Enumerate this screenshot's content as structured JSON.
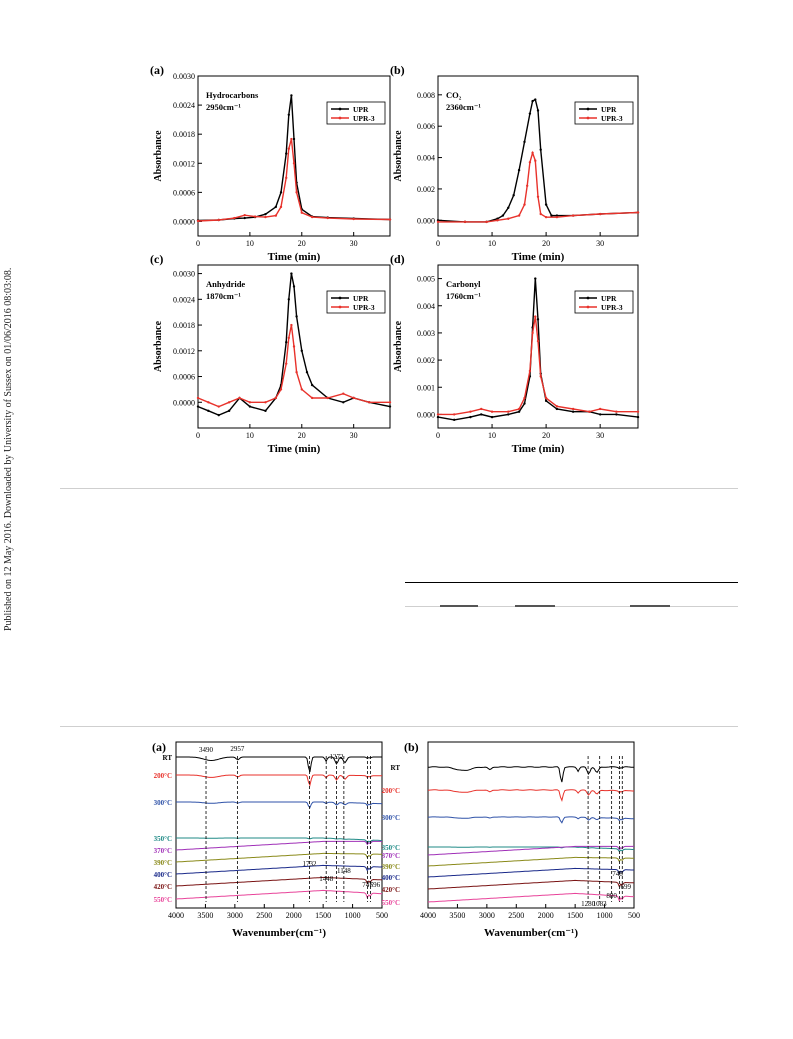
{
  "side_note": "Published on 12 May 2016. Downloaded by University of Sussex on 01/06/2016 08:03:08.",
  "gas_figure": {
    "xlabel": "Time (min)",
    "ylabel": "Absorbance",
    "legend": [
      "UPR",
      "UPR-3"
    ],
    "colors": {
      "UPR": "#000000",
      "UPR-3": "#e8322b"
    }
  },
  "ftir_figure": {
    "xlabel": "Wavenumber(cm⁻¹)"
  },
  "chart_data": [
    {
      "type": "line",
      "panel": "(a)",
      "annotation": [
        "Hydrocarbons",
        "2950cm⁻¹"
      ],
      "xlabel": "Time (min)",
      "ylabel": "Absorbance",
      "xlim": [
        0,
        37
      ],
      "ylim": [
        -0.0003,
        0.003
      ],
      "xticks": [
        "0",
        "10",
        "20",
        "30"
      ],
      "yticks": [
        "0.0000",
        "0.0006",
        "0.0012",
        "0.0018",
        "0.0024",
        "0.0030"
      ],
      "series": [
        {
          "name": "UPR",
          "x": [
            0,
            4,
            7,
            9,
            11,
            13,
            15,
            16,
            17,
            17.5,
            18,
            18.5,
            19,
            20,
            22,
            25,
            30,
            37
          ],
          "y": [
            2e-05,
            3e-05,
            6e-05,
            7e-05,
            9e-05,
            0.00015,
            0.0003,
            0.0006,
            0.0014,
            0.0022,
            0.0026,
            0.0017,
            0.0008,
            0.00025,
            0.0001,
            8e-05,
            6e-05,
            4e-05
          ]
        },
        {
          "name": "UPR-3",
          "x": [
            0,
            4,
            7,
            9,
            11,
            13,
            15,
            16,
            17,
            17.5,
            18,
            18.5,
            19,
            20,
            22,
            25,
            30,
            37
          ],
          "y": [
            1e-05,
            3e-05,
            7e-05,
            0.00013,
            0.0001,
            9e-05,
            0.00012,
            0.0003,
            0.0009,
            0.0015,
            0.0017,
            0.0012,
            0.0006,
            0.00018,
            9e-05,
            7e-05,
            5e-05,
            4e-05
          ]
        }
      ]
    },
    {
      "type": "line",
      "panel": "(b)",
      "annotation": [
        "CO₂",
        "2360cm⁻¹"
      ],
      "xlabel": "Time (min)",
      "ylabel": "Absorbance",
      "xlim": [
        0,
        37
      ],
      "ylim": [
        -0.001,
        0.0092
      ],
      "xticks": [
        "0",
        "10",
        "20",
        "30"
      ],
      "yticks": [
        "0.000",
        "0.002",
        "0.004",
        "0.006",
        "0.008"
      ],
      "series": [
        {
          "name": "UPR",
          "x": [
            0,
            5,
            9,
            11,
            12,
            13,
            14,
            15,
            16,
            17,
            17.5,
            18,
            18.5,
            19,
            20,
            21,
            22,
            25,
            30,
            37
          ],
          "y": [
            0.0,
            -0.0001,
            -0.0001,
            0.0001,
            0.0003,
            0.0008,
            0.0016,
            0.0032,
            0.005,
            0.0068,
            0.0076,
            0.0077,
            0.007,
            0.0045,
            0.001,
            0.0003,
            0.0003,
            0.0003,
            0.0004,
            0.0005
          ]
        },
        {
          "name": "UPR-3",
          "x": [
            0,
            5,
            9,
            11,
            13,
            15,
            16,
            16.5,
            17,
            17.5,
            18,
            18.5,
            19,
            20,
            22,
            25,
            30,
            37
          ],
          "y": [
            -0.0001,
            -0.0001,
            -0.0001,
            0.0,
            0.0001,
            0.0003,
            0.001,
            0.0022,
            0.0037,
            0.0043,
            0.0038,
            0.0015,
            0.0004,
            0.0002,
            0.0002,
            0.0003,
            0.0004,
            0.0005
          ]
        }
      ]
    },
    {
      "type": "line",
      "panel": "(c)",
      "annotation": [
        "Anhydride",
        "1870cm⁻¹"
      ],
      "xlabel": "Time (min)",
      "ylabel": "Absorbance",
      "xlim": [
        0,
        37
      ],
      "ylim": [
        -0.0006,
        0.0032
      ],
      "xticks": [
        "0",
        "10",
        "20",
        "30"
      ],
      "yticks": [
        "0.0000",
        "0.0006",
        "0.0012",
        "0.0018",
        "0.0024",
        "0.0030"
      ],
      "series": [
        {
          "name": "UPR",
          "x": [
            0,
            2,
            4,
            6,
            8,
            10,
            13,
            15,
            16,
            17,
            17.5,
            18,
            18.5,
            19,
            20,
            21,
            22,
            25,
            28,
            30,
            33,
            37
          ],
          "y": [
            -0.0001,
            -0.0002,
            -0.0003,
            -0.0002,
            0.0001,
            -0.0001,
            -0.0002,
            0.0001,
            0.0004,
            0.0014,
            0.0024,
            0.003,
            0.0027,
            0.002,
            0.0012,
            0.0007,
            0.0004,
            0.0001,
            0.0,
            0.0001,
            0.0,
            -0.0001
          ]
        },
        {
          "name": "UPR-3",
          "x": [
            0,
            2,
            4,
            6,
            8,
            10,
            13,
            15,
            16,
            17,
            17.5,
            18,
            18.5,
            19,
            20,
            22,
            25,
            28,
            30,
            33,
            37
          ],
          "y": [
            0.0001,
            0.0,
            -0.0001,
            0.0,
            0.0001,
            0.0,
            0.0,
            0.0001,
            0.0003,
            0.0009,
            0.0015,
            0.0018,
            0.0013,
            0.0007,
            0.0003,
            0.0001,
            0.0001,
            0.0002,
            0.0001,
            0.0,
            0.0
          ]
        }
      ]
    },
    {
      "type": "line",
      "panel": "(d)",
      "annotation": [
        "Carbonyl",
        "1760cm⁻¹"
      ],
      "xlabel": "Time (min)",
      "ylabel": "Absorbance",
      "xlim": [
        0,
        37
      ],
      "ylim": [
        -0.0005,
        0.0055
      ],
      "xticks": [
        "0",
        "10",
        "20",
        "30"
      ],
      "yticks": [
        "0.000",
        "0.001",
        "0.002",
        "0.003",
        "0.004",
        "0.005"
      ],
      "series": [
        {
          "name": "UPR",
          "x": [
            0,
            3,
            6,
            8,
            10,
            13,
            15,
            16,
            17,
            17.5,
            18,
            18.5,
            19,
            20,
            22,
            25,
            28,
            30,
            33,
            37
          ],
          "y": [
            -0.0001,
            -0.0002,
            -0.0001,
            0.0,
            -0.0001,
            0.0,
            0.0001,
            0.0004,
            0.0014,
            0.0032,
            0.005,
            0.0035,
            0.0015,
            0.0005,
            0.0002,
            0.0001,
            0.0001,
            0.0,
            0.0,
            -0.0001
          ]
        },
        {
          "name": "UPR-3",
          "x": [
            0,
            3,
            6,
            8,
            10,
            13,
            15,
            16,
            17,
            17.5,
            18,
            18.5,
            19,
            20,
            22,
            25,
            28,
            30,
            33,
            37
          ],
          "y": [
            0.0,
            0.0,
            0.0001,
            0.0002,
            0.0001,
            0.0001,
            0.0002,
            0.0006,
            0.0016,
            0.003,
            0.0036,
            0.0027,
            0.0014,
            0.0006,
            0.0003,
            0.0002,
            0.0001,
            0.0002,
            0.0001,
            0.0001
          ]
        }
      ]
    },
    {
      "type": "line",
      "panel": "(a)",
      "xlabel": "Wavenumber(cm⁻¹)",
      "xlim": [
        4000,
        500
      ],
      "xticks": [
        "4000",
        "3500",
        "3000",
        "2500",
        "2000",
        "1500",
        "1000",
        "500"
      ],
      "series": [
        {
          "name": "RT",
          "color": "#000000"
        },
        {
          "name": "200°C",
          "color": "#e8322b"
        },
        {
          "name": "300°C",
          "color": "#2f52a8"
        },
        {
          "name": "350°C",
          "color": "#1f8a86"
        },
        {
          "name": "370°C",
          "color": "#a030b8"
        },
        {
          "name": "390°C",
          "color": "#8a8a1a"
        },
        {
          "name": "400°C",
          "color": "#1a2a8a"
        },
        {
          "name": "420°C",
          "color": "#7a1414"
        },
        {
          "name": "550°C",
          "color": "#e8449a"
        }
      ],
      "peak_labels": [
        "3490",
        "2957",
        "1272",
        "1732",
        "1448",
        "1148",
        "747",
        "696"
      ]
    },
    {
      "type": "line",
      "panel": "(b)",
      "xlabel": "Wavenumber(cm⁻¹)",
      "xlim": [
        4000,
        500
      ],
      "xticks": [
        "4000",
        "3500",
        "3000",
        "2500",
        "2000",
        "1500",
        "1000",
        "500"
      ],
      "series": [
        {
          "name": "RT",
          "color": "#000000"
        },
        {
          "name": "200°C",
          "color": "#e8322b"
        },
        {
          "name": "300°C",
          "color": "#2f52a8"
        },
        {
          "name": "350°C",
          "color": "#1f8a86"
        },
        {
          "name": "370°C",
          "color": "#a030b8"
        },
        {
          "name": "390°C",
          "color": "#8a8a1a"
        },
        {
          "name": "400°C",
          "color": "#1a2a8a"
        },
        {
          "name": "420°C",
          "color": "#7a1414"
        },
        {
          "name": "550°C",
          "color": "#e8449a"
        }
      ],
      "peak_labels": [
        "748",
        "699",
        "880",
        "1083",
        "1280"
      ]
    }
  ]
}
